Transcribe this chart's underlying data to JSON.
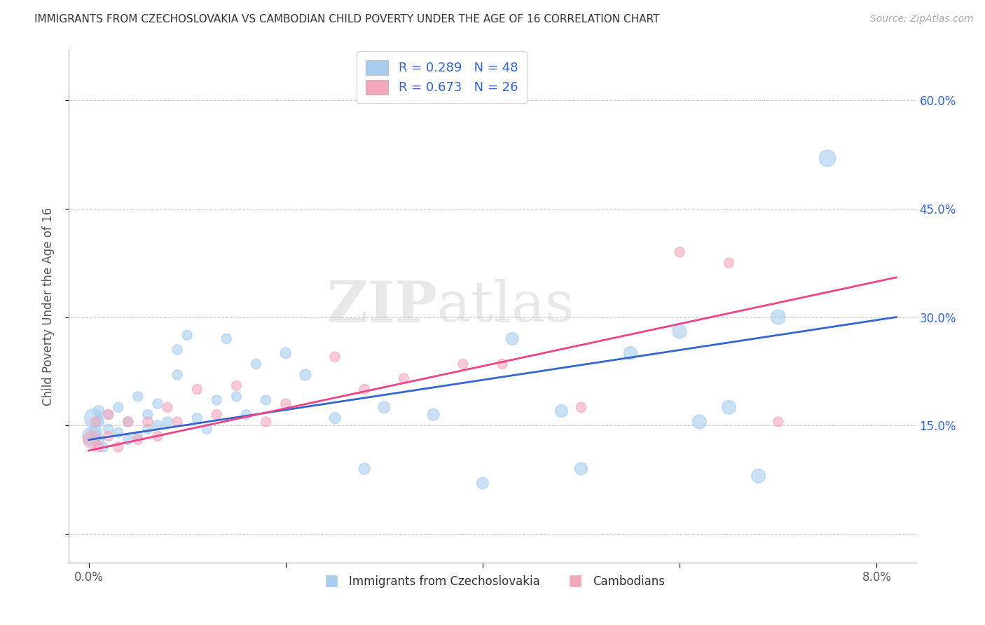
{
  "title": "IMMIGRANTS FROM CZECHOSLOVAKIA VS CAMBODIAN CHILD POVERTY UNDER THE AGE OF 16 CORRELATION CHART",
  "source": "Source: ZipAtlas.com",
  "ylabel": "Child Poverty Under the Age of 16",
  "ytick_vals": [
    0.0,
    0.15,
    0.3,
    0.45,
    0.6
  ],
  "ytick_labels": [
    "",
    "15.0%",
    "30.0%",
    "45.0%",
    "60.0%"
  ],
  "xtick_vals": [
    0.0,
    0.02,
    0.04,
    0.06,
    0.08
  ],
  "xtick_labels": [
    "0.0%",
    "",
    "",
    "",
    "8.0%"
  ],
  "xlim": [
    -0.002,
    0.084
  ],
  "ylim": [
    -0.04,
    0.67
  ],
  "legend_line1": "R = 0.289   N = 48",
  "legend_line2": "R = 0.673   N = 26",
  "legend_label1": "Immigrants from Czechoslovakia",
  "legend_label2": "Cambodians",
  "blue_color": "#A8CCEE",
  "pink_color": "#F2A8BA",
  "line_blue": "#3366CC",
  "line_pink": "#EE4488",
  "blue_r": 0.289,
  "blue_n": 48,
  "pink_r": 0.673,
  "pink_n": 26,
  "blue_x": [
    0.0003,
    0.0005,
    0.0007,
    0.001,
    0.001,
    0.001,
    0.0015,
    0.002,
    0.002,
    0.003,
    0.003,
    0.004,
    0.004,
    0.005,
    0.005,
    0.006,
    0.006,
    0.007,
    0.007,
    0.008,
    0.009,
    0.009,
    0.01,
    0.011,
    0.012,
    0.013,
    0.014,
    0.015,
    0.016,
    0.017,
    0.018,
    0.02,
    0.022,
    0.025,
    0.028,
    0.03,
    0.035,
    0.04,
    0.043,
    0.048,
    0.05,
    0.055,
    0.06,
    0.062,
    0.065,
    0.068,
    0.07,
    0.075
  ],
  "blue_y": [
    0.135,
    0.16,
    0.14,
    0.13,
    0.155,
    0.17,
    0.12,
    0.145,
    0.165,
    0.14,
    0.175,
    0.13,
    0.155,
    0.135,
    0.19,
    0.145,
    0.165,
    0.15,
    0.18,
    0.155,
    0.22,
    0.255,
    0.275,
    0.16,
    0.145,
    0.185,
    0.27,
    0.19,
    0.165,
    0.235,
    0.185,
    0.25,
    0.22,
    0.16,
    0.09,
    0.175,
    0.165,
    0.07,
    0.27,
    0.17,
    0.09,
    0.25,
    0.28,
    0.155,
    0.175,
    0.08,
    0.3,
    0.52
  ],
  "blue_size": [
    350,
    350,
    180,
    120,
    120,
    120,
    100,
    100,
    100,
    100,
    100,
    100,
    100,
    100,
    100,
    100,
    100,
    100,
    100,
    100,
    100,
    100,
    100,
    100,
    100,
    100,
    100,
    100,
    100,
    100,
    100,
    120,
    130,
    130,
    130,
    140,
    140,
    140,
    160,
    160,
    160,
    180,
    200,
    200,
    200,
    200,
    220,
    280
  ],
  "pink_x": [
    0.0003,
    0.0007,
    0.001,
    0.002,
    0.002,
    0.003,
    0.004,
    0.005,
    0.006,
    0.007,
    0.008,
    0.009,
    0.011,
    0.013,
    0.015,
    0.018,
    0.02,
    0.025,
    0.028,
    0.032,
    0.038,
    0.042,
    0.05,
    0.06,
    0.065,
    0.07
  ],
  "pink_y": [
    0.13,
    0.155,
    0.12,
    0.135,
    0.165,
    0.12,
    0.155,
    0.13,
    0.155,
    0.135,
    0.175,
    0.155,
    0.2,
    0.165,
    0.205,
    0.155,
    0.18,
    0.245,
    0.2,
    0.215,
    0.235,
    0.235,
    0.175,
    0.39,
    0.375,
    0.155
  ],
  "pink_size": [
    300,
    100,
    100,
    100,
    100,
    100,
    100,
    100,
    100,
    100,
    100,
    100,
    100,
    100,
    100,
    100,
    100,
    100,
    100,
    100,
    100,
    100,
    100,
    100,
    100,
    100
  ],
  "watermark_zip": "ZIP",
  "watermark_atlas": "atlas",
  "grid_color": "#CCCCCC",
  "background_color": "#FFFFFF",
  "title_color": "#333333",
  "source_color": "#AAAAAA",
  "tick_label_color": "#3366CC",
  "axis_label_color": "#555555"
}
